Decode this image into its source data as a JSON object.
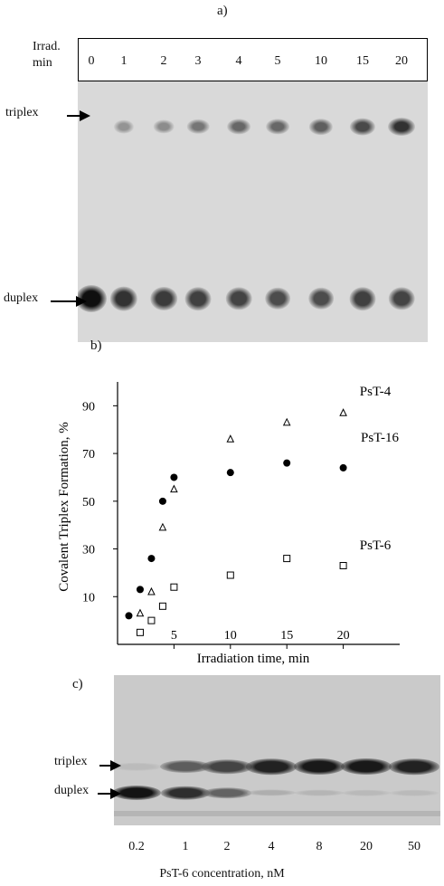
{
  "panel_a": {
    "label": "a)",
    "irrad_label_line1": "Irrad.",
    "irrad_label_line2": "min",
    "lanes": [
      "0",
      "1",
      "2",
      "3",
      "4",
      "5",
      "10",
      "15",
      "20"
    ],
    "triplex_label": "triplex",
    "duplex_label": "duplex",
    "triplex_intensity": [
      0.0,
      0.35,
      0.4,
      0.55,
      0.65,
      0.65,
      0.7,
      0.85,
      1.0
    ],
    "duplex_intensity": [
      1.0,
      0.8,
      0.75,
      0.72,
      0.7,
      0.65,
      0.65,
      0.72,
      0.7
    ]
  },
  "panel_b": {
    "label": "b)"
  },
  "chart_data": {
    "type": "scatter",
    "xlabel": "Irradiation time, min",
    "ylabel": "Covalent Triplex Formation, %",
    "xlim": [
      0,
      25
    ],
    "ylim": [
      -10,
      100
    ],
    "xticks": [
      5,
      10,
      15,
      20
    ],
    "yticks": [
      10,
      30,
      50,
      70,
      90
    ],
    "grid": false,
    "series": [
      {
        "name": "PsT-4",
        "marker": "triangle",
        "x": [
          2,
          3,
          4,
          5,
          10,
          15,
          20
        ],
        "y": [
          3,
          12,
          39,
          55,
          76,
          83,
          87
        ]
      },
      {
        "name": "PsT-16",
        "marker": "filled-circle",
        "x": [
          1,
          2,
          3,
          4,
          5,
          10,
          15,
          20
        ],
        "y": [
          2,
          13,
          26,
          50,
          60,
          62,
          66,
          64
        ]
      },
      {
        "name": "PsT-6",
        "marker": "square",
        "x": [
          2,
          3,
          4,
          5,
          10,
          15,
          20
        ],
        "y": [
          -5,
          0,
          6,
          14,
          19,
          26,
          23
        ]
      }
    ]
  },
  "panel_c": {
    "label": "c)",
    "triplex_label": "triplex",
    "duplex_label": "duplex",
    "concentrations": [
      "0.2",
      "1",
      "2",
      "4",
      "8",
      "20",
      "50"
    ],
    "xlabel": "PsT-6 concentration, nM",
    "triplex_intensity": [
      0.05,
      0.6,
      0.75,
      0.95,
      1.0,
      1.0,
      0.95
    ],
    "duplex_intensity": [
      1.0,
      0.85,
      0.55,
      0.12,
      0.08,
      0.06,
      0.05
    ]
  }
}
